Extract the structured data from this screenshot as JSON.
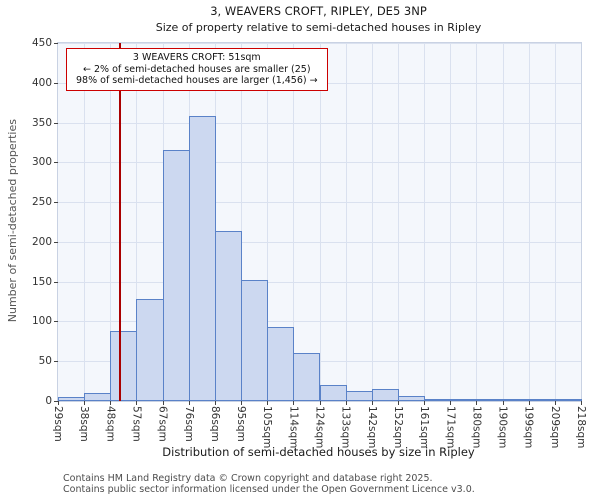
{
  "annotation": {
    "line1": "3 WEAVERS CROFT: 51sqm",
    "line2": "← 2% of semi-detached houses are smaller (25)",
    "line3": "98% of semi-detached houses are larger (1,456) →"
  },
  "footer": {
    "line1": "Contains HM Land Registry data © Crown copyright and database right 2025.",
    "line2": "Contains public sector information licensed under the Open Government Licence v3.0."
  },
  "chart_data": {
    "type": "bar",
    "title": "3, WEAVERS CROFT, RIPLEY, DE5 3NP",
    "subtitle": "Size of property relative to semi-detached houses in Ripley",
    "xlabel": "Distribution of semi-detached houses by size in Ripley",
    "ylabel": "Number of semi-detached properties",
    "ylim": [
      0,
      450
    ],
    "y_ticks": [
      0,
      50,
      100,
      150,
      200,
      250,
      300,
      350,
      400,
      450
    ],
    "x_tick_labels": [
      "29sqm",
      "38sqm",
      "48sqm",
      "57sqm",
      "67sqm",
      "76sqm",
      "86sqm",
      "95sqm",
      "105sqm",
      "114sqm",
      "124sqm",
      "133sqm",
      "142sqm",
      "152sqm",
      "161sqm",
      "171sqm",
      "180sqm",
      "190sqm",
      "199sqm",
      "209sqm",
      "218sqm"
    ],
    "bin_edges_sqm": [
      29,
      38,
      48,
      57,
      67,
      76,
      86,
      95,
      105,
      114,
      124,
      133,
      142,
      152,
      161,
      171,
      180,
      190,
      199,
      209,
      218
    ],
    "values": [
      5,
      10,
      88,
      128,
      315,
      358,
      214,
      152,
      93,
      60,
      20,
      12,
      15,
      6,
      2,
      2,
      3,
      1,
      1,
      2
    ],
    "grid": true,
    "legend_position": "none",
    "marker": {
      "value": 51,
      "color": "#aa0000"
    },
    "colors": {
      "bar_fill": "#ccd8f0",
      "bar_border": "#5a82c8",
      "grid": "#dae1ef",
      "plot_bg": "#f4f7fc",
      "annotation_border": "#cc0000"
    }
  }
}
